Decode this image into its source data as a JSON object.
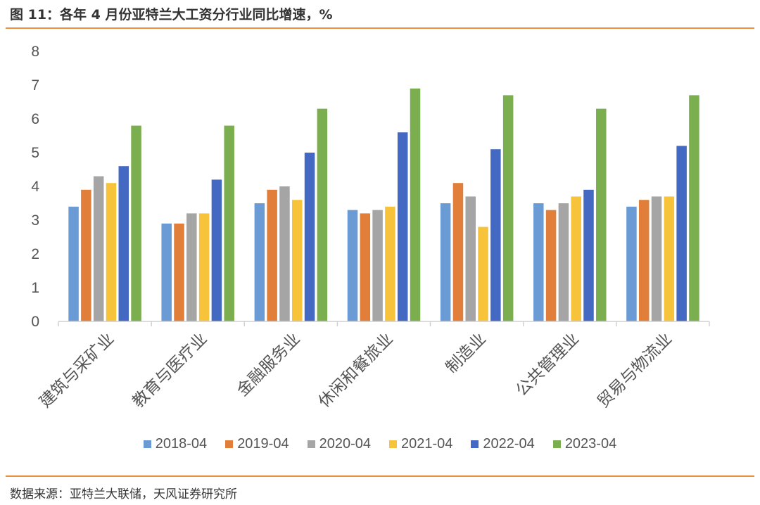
{
  "header": {
    "title": "图 11：各年 4 月份亚特兰大工资分行业同比增速，%"
  },
  "footer": {
    "source": "数据来源：亚特兰大联储，天风证券研究所"
  },
  "chart_data": {
    "type": "bar",
    "ylim": [
      0,
      8
    ],
    "yticks": [
      "0",
      "1",
      "2",
      "3",
      "4",
      "5",
      "6",
      "7",
      "8"
    ],
    "grid": false,
    "legend_position": "bottom",
    "categories": [
      "建筑与采矿业",
      "教育与医疗业",
      "金融服务业",
      "休闲和餐旅业",
      "制造业",
      "公共管理业",
      "贸易与物流业"
    ],
    "series": [
      {
        "name": "2018-04",
        "color": "#6A9BD4",
        "values": [
          3.4,
          2.9,
          3.5,
          3.3,
          3.5,
          3.5,
          3.4
        ]
      },
      {
        "name": "2019-04",
        "color": "#E07E3A",
        "values": [
          3.9,
          2.9,
          3.9,
          3.2,
          4.1,
          3.3,
          3.6
        ]
      },
      {
        "name": "2020-04",
        "color": "#A5A5A5",
        "values": [
          4.3,
          3.2,
          4.0,
          3.3,
          3.7,
          3.5,
          3.7
        ]
      },
      {
        "name": "2021-04",
        "color": "#F7C33A",
        "values": [
          4.1,
          3.2,
          3.6,
          3.4,
          2.8,
          3.7,
          3.7
        ]
      },
      {
        "name": "2022-04",
        "color": "#4469C2",
        "values": [
          4.6,
          4.2,
          5.0,
          5.6,
          5.1,
          3.9,
          5.2
        ]
      },
      {
        "name": "2023-04",
        "color": "#7BAE4E",
        "values": [
          5.8,
          5.8,
          6.3,
          6.9,
          6.7,
          6.3,
          6.7
        ]
      }
    ]
  }
}
